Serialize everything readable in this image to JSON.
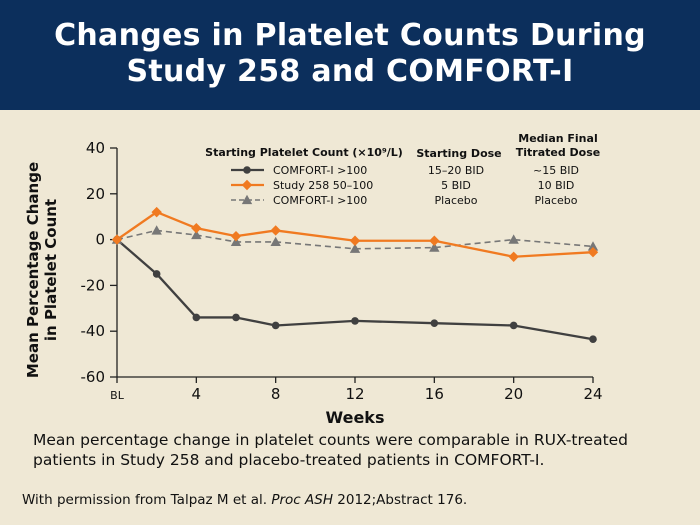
{
  "slide": {
    "title_line1": "Changes in Platelet Counts During",
    "title_line2": "Study 258 and COMFORT-I",
    "caption": "Mean percentage change in platelet counts were comparable in RUX-treated patients in Study 258 and placebo-treated patients in COMFORT-I.",
    "source_prefix": "With permission from Talpaz M et al. ",
    "source_journal": "Proc ASH",
    "source_suffix": " 2012;Abstract 176."
  },
  "chart_data": {
    "type": "line",
    "xlabel": "Weeks",
    "ylabel_line1": "Mean Percentage Change",
    "ylabel_line2": "in Platelet Count",
    "x": [
      0,
      2,
      4,
      6,
      8,
      12,
      16,
      20,
      24
    ],
    "xticks": [
      {
        "x": 0,
        "label": "BL"
      },
      {
        "x": 4,
        "label": "4"
      },
      {
        "x": 8,
        "label": "8"
      },
      {
        "x": 12,
        "label": "12"
      },
      {
        "x": 16,
        "label": "16"
      },
      {
        "x": 20,
        "label": "20"
      },
      {
        "x": 24,
        "label": "24"
      }
    ],
    "xlim": [
      0,
      24
    ],
    "ylim": [
      -60,
      40
    ],
    "yticks": [
      40,
      20,
      0,
      -20,
      -40,
      -60
    ],
    "grid": false,
    "legend_position": "top",
    "legend_header": {
      "group": "Starting Platelet Count (×10⁹/L)",
      "dose": "Starting Dose",
      "final_line1": "Median Final",
      "final_line2": "Titrated Dose"
    },
    "series": [
      {
        "name": "COMFORT-I >100",
        "starting_dose": "15–20 BID",
        "final_dose": "~15 BID",
        "color": "#404040",
        "marker": "circle",
        "dashed": false,
        "values": [
          0,
          -15,
          -34,
          -34,
          -37.5,
          -35.5,
          -36.5,
          -37.5,
          -43.5
        ]
      },
      {
        "name": "Study 258 50–100",
        "starting_dose": "5 BID",
        "final_dose": "10 BID",
        "color": "#f07a21",
        "marker": "diamond",
        "dashed": false,
        "values": [
          0,
          12,
          5,
          1.5,
          4,
          -0.5,
          -0.5,
          -7.5,
          -5.5
        ]
      },
      {
        "name": "COMFORT-I >100",
        "starting_dose": "Placebo",
        "final_dose": "Placebo",
        "color": "#777777",
        "marker": "triangle",
        "dashed": true,
        "values": [
          0,
          4,
          2,
          -1,
          -1,
          -4,
          -3.5,
          0,
          -3
        ]
      }
    ]
  }
}
